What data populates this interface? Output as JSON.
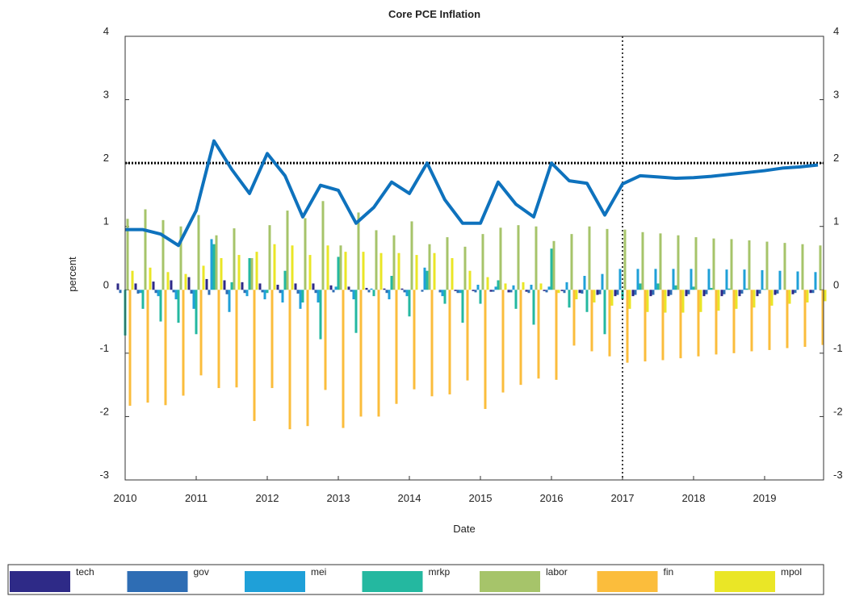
{
  "chart_data": {
    "type": "bar_line",
    "title": "Core PCE Inflation",
    "xlabel": "Date",
    "ylabel": "percent",
    "x": [
      2010,
      2010.25,
      2010.5,
      2010.75,
      2011,
      2011.25,
      2011.5,
      2011.75,
      2012,
      2012.25,
      2012.5,
      2012.75,
      2013,
      2013.25,
      2013.5,
      2013.75,
      2014,
      2014.25,
      2014.5,
      2014.75,
      2015,
      2015.25,
      2015.5,
      2015.75,
      2016,
      2016.25,
      2016.5,
      2016.75,
      2017,
      2017.25,
      2017.5,
      2017.75,
      2018,
      2018.25,
      2018.5,
      2018.75,
      2019,
      2019.25,
      2019.5,
      2019.75
    ],
    "xlim": [
      2010,
      2019.83
    ],
    "xticks": [
      2010,
      2011,
      2012,
      2013,
      2014,
      2015,
      2016,
      2017,
      2018,
      2019
    ],
    "ylim": [
      -3,
      4
    ],
    "yticks": [
      -3,
      -2,
      -1,
      0,
      1,
      2,
      3,
      4
    ],
    "y2lim": [
      -3,
      4
    ],
    "y2ticks": [
      -3,
      -2,
      -1,
      0,
      1,
      2,
      3,
      4
    ],
    "reference_lines": {
      "y": 2,
      "x": 2017
    },
    "legend": "bottom-outside",
    "series": [
      {
        "name": "tech",
        "color": "#2e2a87",
        "values": [
          0.1,
          0.1,
          0.13,
          0.15,
          0.2,
          0.17,
          0.15,
          0.12,
          0.1,
          0.08,
          0.1,
          0.1,
          0.07,
          0.05,
          0.03,
          0.02,
          0.02,
          0,
          0,
          -0.02,
          -0.02,
          -0.03,
          -0.04,
          -0.03,
          -0.02,
          -0.02,
          -0.05,
          -0.08,
          -0.1,
          -0.1,
          -0.1,
          -0.1,
          -0.1,
          -0.1,
          -0.1,
          -0.1,
          -0.1,
          -0.08,
          -0.07,
          -0.05
        ]
      },
      {
        "name": "gov",
        "color": "#2e6db4",
        "values": [
          -0.05,
          -0.06,
          -0.05,
          -0.04,
          -0.06,
          -0.08,
          -0.07,
          -0.05,
          -0.04,
          -0.05,
          -0.06,
          -0.05,
          -0.04,
          -0.03,
          -0.04,
          -0.05,
          -0.04,
          -0.03,
          -0.04,
          -0.05,
          -0.04,
          -0.03,
          -0.04,
          -0.05,
          -0.04,
          -0.05,
          -0.06,
          -0.07,
          -0.08,
          -0.08,
          -0.08,
          -0.08,
          -0.07,
          -0.07,
          -0.07,
          -0.06,
          -0.06,
          -0.06,
          -0.05,
          -0.05
        ]
      },
      {
        "name": "mei",
        "color": "#1fa0d8",
        "values": [
          0,
          -0.05,
          -0.1,
          -0.15,
          -0.3,
          0.8,
          -0.35,
          -0.1,
          -0.15,
          -0.2,
          -0.3,
          -0.2,
          0.05,
          -0.15,
          0.02,
          -0.15,
          -0.1,
          0.35,
          -0.1,
          -0.05,
          0.08,
          0.05,
          0.07,
          0.08,
          0.05,
          0.12,
          0.22,
          0.25,
          0.33,
          0.33,
          0.33,
          0.33,
          0.33,
          0.33,
          0.32,
          0.32,
          0.31,
          0.3,
          0.29,
          0.28
        ]
      },
      {
        "name": "mrkp",
        "color": "#24b8a0",
        "values": [
          -0.72,
          -0.3,
          -0.5,
          -0.52,
          -0.7,
          0.72,
          0.12,
          0.5,
          -0.05,
          0.3,
          -0.2,
          -0.78,
          0.52,
          -0.68,
          -0.1,
          0.22,
          -0.42,
          0.3,
          -0.22,
          -0.52,
          -0.22,
          0.15,
          -0.3,
          -0.55,
          0.65,
          -0.28,
          -0.35,
          -0.7,
          -0.15,
          0.1,
          0.1,
          0.07,
          0.05,
          0.03,
          0.02,
          0.02,
          0.01,
          0,
          0,
          0
        ]
      },
      {
        "name": "labor",
        "color": "#a6c46a",
        "values": [
          1.12,
          1.27,
          1.1,
          1.0,
          1.18,
          0.86,
          0.97,
          0.5,
          1.02,
          1.25,
          1.13,
          1.4,
          0.7,
          1.22,
          0.94,
          0.86,
          1.08,
          0.72,
          0.83,
          0.68,
          0.88,
          0.98,
          1.02,
          1.0,
          0.77,
          0.88,
          1.0,
          0.96,
          0.95,
          0.91,
          0.89,
          0.86,
          0.83,
          0.81,
          0.8,
          0.78,
          0.76,
          0.74,
          0.72,
          0.7
        ]
      },
      {
        "name": "fin",
        "color": "#fbbd3c",
        "values": [
          -1.83,
          -1.78,
          -1.82,
          -1.67,
          -1.35,
          -1.55,
          -1.54,
          -2.07,
          -1.55,
          -2.2,
          -2.15,
          -1.58,
          -2.18,
          -2.0,
          -2.0,
          -1.8,
          -1.57,
          -1.68,
          -1.65,
          -1.43,
          -1.88,
          -1.62,
          -1.5,
          -1.4,
          -1.42,
          -0.88,
          -0.97,
          -1.05,
          -1.15,
          -1.13,
          -1.11,
          -1.08,
          -1.05,
          -1.02,
          -1.0,
          -0.97,
          -0.95,
          -0.92,
          -0.9,
          -0.87
        ]
      },
      {
        "name": "mpol",
        "color": "#eae626",
        "values": [
          0.3,
          0.35,
          0.28,
          0.25,
          0.38,
          0.5,
          0.55,
          0.6,
          0.72,
          0.7,
          0.55,
          0.7,
          0.6,
          0.6,
          0.58,
          0.58,
          0.55,
          0.58,
          0.5,
          0.3,
          0.2,
          0.1,
          0.12,
          0.1,
          -0.05,
          -0.15,
          -0.2,
          -0.25,
          -0.3,
          -0.35,
          -0.36,
          -0.36,
          -0.35,
          -0.33,
          -0.3,
          -0.28,
          -0.25,
          -0.22,
          -0.2,
          -0.18
        ]
      }
    ],
    "line": {
      "color": "#0e72bd",
      "values": [
        0.95,
        0.95,
        0.88,
        0.7,
        1.25,
        2.35,
        1.9,
        1.52,
        2.15,
        1.8,
        1.15,
        1.65,
        1.57,
        1.05,
        1.3,
        1.7,
        1.52,
        2.0,
        1.42,
        1.05,
        1.05,
        1.7,
        1.35,
        1.15,
        2.0,
        1.72,
        1.68,
        1.18,
        1.67,
        1.8,
        1.78,
        1.76,
        1.77,
        1.79,
        1.82,
        1.85,
        1.88,
        1.92,
        1.94,
        1.97
      ]
    }
  }
}
